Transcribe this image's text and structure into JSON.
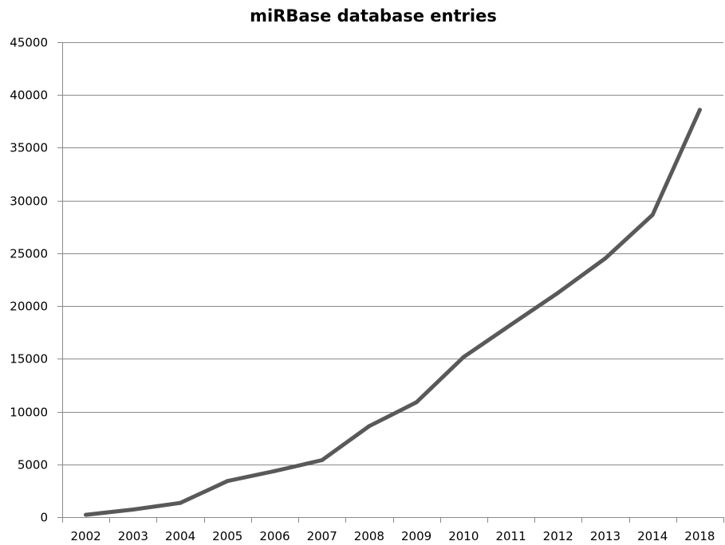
{
  "chart_data": {
    "type": "line",
    "title": "miRBase database entries",
    "xlabel": "",
    "ylabel": "",
    "categories": [
      "2002",
      "2003",
      "2004",
      "2005",
      "2006",
      "2007",
      "2008",
      "2009",
      "2010",
      "2011",
      "2012",
      "2013",
      "2014",
      "2018"
    ],
    "series": [
      {
        "values": [
          218,
          719,
          1345,
          3424,
          4361,
          5395,
          8619,
          10883,
          15172,
          18226,
          21264,
          24521,
          28645,
          38589
        ]
      }
    ],
    "ylim": [
      0,
      45000
    ],
    "yticks": [
      "0",
      "5000",
      "10000",
      "15000",
      "20000",
      "25000",
      "30000",
      "35000",
      "40000",
      "45000"
    ],
    "grid": "horizontal",
    "legend": "none",
    "colors": {
      "line": "#595959",
      "grid": "#8a8a8a",
      "text": "#000000"
    }
  }
}
